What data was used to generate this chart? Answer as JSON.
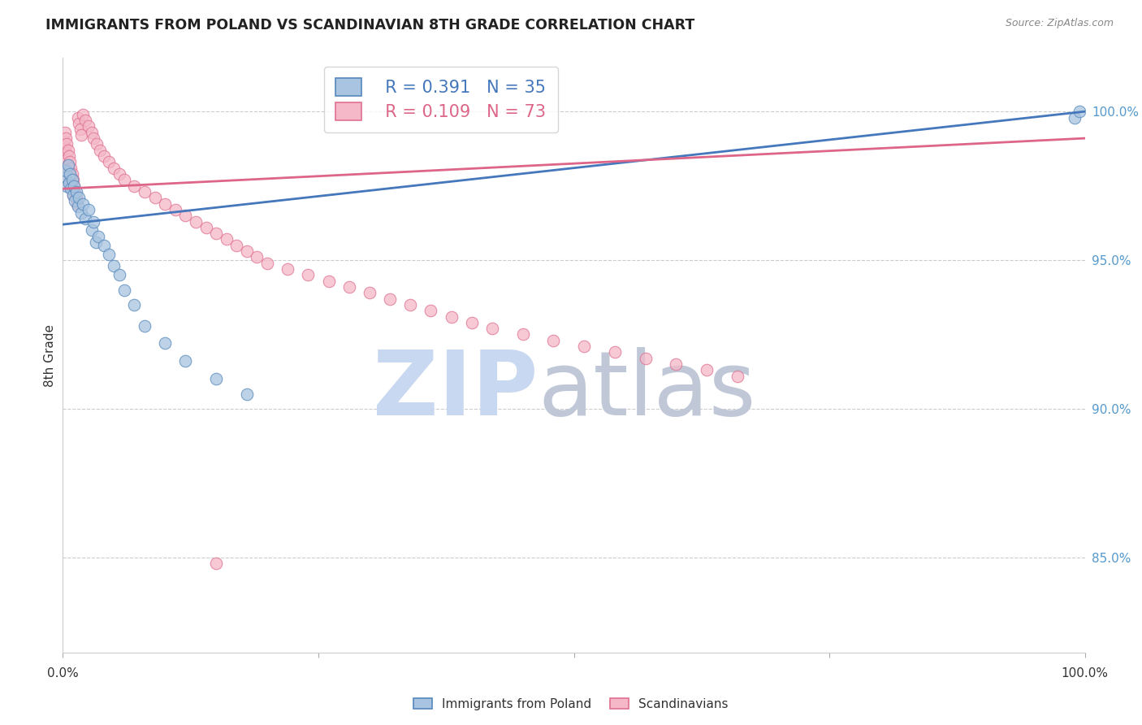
{
  "title": "IMMIGRANTS FROM POLAND VS SCANDINAVIAN 8TH GRADE CORRELATION CHART",
  "source": "Source: ZipAtlas.com",
  "ylabel": "8th Grade",
  "ytick_labels": [
    "85.0%",
    "90.0%",
    "95.0%",
    "100.0%"
  ],
  "ytick_values": [
    0.85,
    0.9,
    0.95,
    1.0
  ],
  "xmin": 0.0,
  "xmax": 1.0,
  "ymin": 0.818,
  "ymax": 1.018,
  "legend_blue_r": "R = 0.391",
  "legend_blue_n": "N = 35",
  "legend_pink_r": "R = 0.109",
  "legend_pink_n": "N = 73",
  "legend_blue_label": "Immigrants from Poland",
  "legend_pink_label": "Scandinavians",
  "blue_color": "#A8C4E0",
  "pink_color": "#F4B8C8",
  "blue_edge_color": "#5588BB",
  "pink_edge_color": "#E07090",
  "blue_line_color": "#4477BB",
  "pink_line_color": "#DD6688",
  "watermark_zip_color": "#C8D8F0",
  "watermark_atlas_color": "#C0C8D8",
  "grid_color": "#CCCCCC",
  "background_color": "#FFFFFF",
  "blue_scatter_x": [
    0.002,
    0.003,
    0.004,
    0.005,
    0.006,
    0.007,
    0.008,
    0.009,
    0.01,
    0.011,
    0.012,
    0.013,
    0.015,
    0.016,
    0.018,
    0.02,
    0.022,
    0.025,
    0.028,
    0.03,
    0.032,
    0.035,
    0.04,
    0.045,
    0.05,
    0.055,
    0.06,
    0.07,
    0.08,
    0.1,
    0.12,
    0.15,
    0.18,
    0.99,
    0.995
  ],
  "blue_scatter_y": [
    0.978,
    0.98,
    0.975,
    0.982,
    0.976,
    0.979,
    0.974,
    0.977,
    0.972,
    0.975,
    0.97,
    0.973,
    0.968,
    0.971,
    0.966,
    0.969,
    0.964,
    0.967,
    0.96,
    0.963,
    0.956,
    0.958,
    0.955,
    0.952,
    0.948,
    0.945,
    0.94,
    0.935,
    0.928,
    0.922,
    0.916,
    0.91,
    0.905,
    0.998,
    1.0
  ],
  "pink_scatter_x": [
    0.001,
    0.002,
    0.002,
    0.003,
    0.003,
    0.004,
    0.004,
    0.005,
    0.005,
    0.006,
    0.006,
    0.007,
    0.007,
    0.008,
    0.008,
    0.009,
    0.009,
    0.01,
    0.01,
    0.011,
    0.012,
    0.013,
    0.014,
    0.015,
    0.016,
    0.017,
    0.018,
    0.02,
    0.022,
    0.025,
    0.028,
    0.03,
    0.033,
    0.036,
    0.04,
    0.045,
    0.05,
    0.055,
    0.06,
    0.07,
    0.08,
    0.09,
    0.1,
    0.11,
    0.12,
    0.13,
    0.14,
    0.15,
    0.16,
    0.17,
    0.18,
    0.19,
    0.2,
    0.22,
    0.24,
    0.26,
    0.28,
    0.3,
    0.32,
    0.34,
    0.36,
    0.38,
    0.4,
    0.42,
    0.45,
    0.48,
    0.51,
    0.54,
    0.57,
    0.6,
    0.63,
    0.66,
    0.15
  ],
  "pink_scatter_y": [
    0.99,
    0.988,
    0.993,
    0.986,
    0.991,
    0.984,
    0.989,
    0.982,
    0.987,
    0.98,
    0.985,
    0.978,
    0.983,
    0.976,
    0.981,
    0.974,
    0.979,
    0.972,
    0.977,
    0.975,
    0.973,
    0.971,
    0.969,
    0.998,
    0.996,
    0.994,
    0.992,
    0.999,
    0.997,
    0.995,
    0.993,
    0.991,
    0.989,
    0.987,
    0.985,
    0.983,
    0.981,
    0.979,
    0.977,
    0.975,
    0.973,
    0.971,
    0.969,
    0.967,
    0.965,
    0.963,
    0.961,
    0.959,
    0.957,
    0.955,
    0.953,
    0.951,
    0.949,
    0.947,
    0.945,
    0.943,
    0.941,
    0.939,
    0.937,
    0.935,
    0.933,
    0.931,
    0.929,
    0.927,
    0.925,
    0.923,
    0.921,
    0.919,
    0.917,
    0.915,
    0.913,
    0.911,
    0.848
  ],
  "blue_trendline_x": [
    0.0,
    1.0
  ],
  "blue_trendline_y": [
    0.962,
    1.0
  ],
  "pink_trendline_x": [
    0.0,
    1.0
  ],
  "pink_trendline_y": [
    0.974,
    0.991
  ]
}
